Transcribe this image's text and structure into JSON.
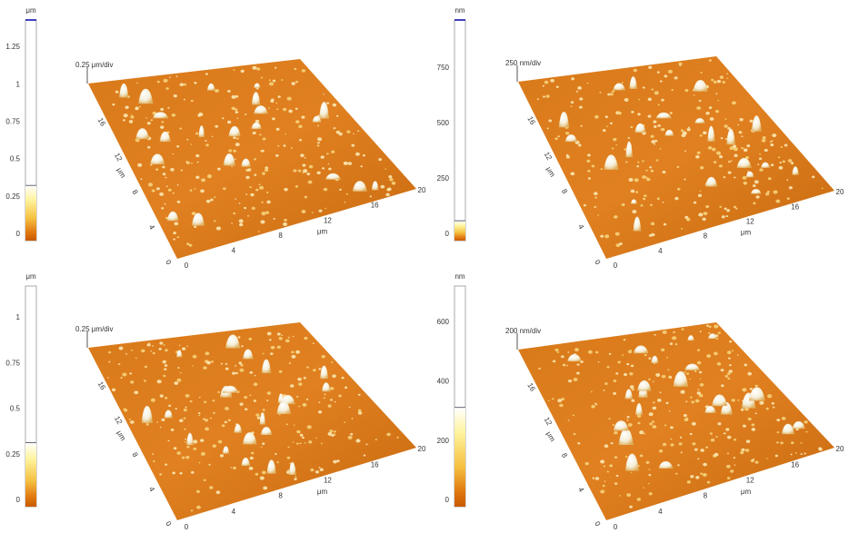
{
  "panels": [
    {
      "colorbar": {
        "unit": "μm",
        "ticks": [
          "1.25",
          "1",
          "0.75",
          "0.5",
          "0.25",
          "0"
        ]
      },
      "scale": "0.25 μm/div",
      "x_ticks": [
        "0",
        "4",
        "8",
        "12",
        "16",
        "20"
      ],
      "y_ticks": [
        "0",
        "4",
        "8",
        "12",
        "16"
      ],
      "x_label": "μm",
      "y_label": "μm"
    },
    {
      "colorbar": {
        "unit": "nm",
        "ticks": [
          "750",
          "500",
          "250",
          "0"
        ]
      },
      "scale": "250 nm/div",
      "x_ticks": [
        "0",
        "4",
        "8",
        "12",
        "16",
        "20"
      ],
      "y_ticks": [
        "0",
        "4",
        "8",
        "12",
        "16"
      ],
      "x_label": "μm",
      "y_label": "μm"
    },
    {
      "colorbar": {
        "unit": "μm",
        "ticks": [
          "1",
          "0.75",
          "0.5",
          "0.25",
          "0"
        ]
      },
      "scale": "0.25 μm/div",
      "x_ticks": [
        "0",
        "4",
        "8",
        "12",
        "16",
        "20"
      ],
      "y_ticks": [
        "0",
        "4",
        "8",
        "12",
        "16"
      ],
      "x_label": "μm",
      "y_label": "μm"
    },
    {
      "colorbar": {
        "unit": "nm",
        "ticks": [
          "600",
          "400",
          "200",
          "0"
        ]
      },
      "scale": "200 nm/div",
      "x_ticks": [
        "0",
        "4",
        "8",
        "12",
        "16",
        "20"
      ],
      "y_ticks": [
        "0",
        "4",
        "8",
        "12",
        "16"
      ],
      "x_label": "μm",
      "y_label": "μm"
    }
  ]
}
